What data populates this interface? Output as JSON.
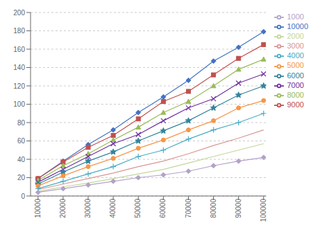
{
  "chart_data": {
    "type": "line",
    "x": [
      10000,
      20000,
      30000,
      40000,
      50000,
      60000,
      70000,
      80000,
      90000,
      100000
    ],
    "series": [
      {
        "name": "10000",
        "color": "#4472C4",
        "marker": "diamond",
        "values": [
          19,
          38,
          56,
          72,
          91,
          108,
          126,
          147,
          162,
          179
        ]
      },
      {
        "name": "9000",
        "color": "#C0504D",
        "marker": "square",
        "values": [
          19,
          37,
          53,
          66,
          84,
          103,
          114,
          132,
          150,
          165
        ]
      },
      {
        "name": "8000",
        "color": "#9BBB59",
        "marker": "triangle",
        "values": [
          17,
          33,
          46,
          61,
          75,
          91,
          103,
          120,
          138,
          149
        ]
      },
      {
        "name": "7000",
        "color": "#7030A0",
        "marker": "x",
        "values": [
          15,
          29,
          43,
          57,
          67,
          82,
          96,
          106,
          123,
          133
        ]
      },
      {
        "name": "6000",
        "color": "#31849B",
        "marker": "star",
        "values": [
          13,
          26,
          38,
          48,
          60,
          71,
          82,
          96,
          110,
          120
        ]
      },
      {
        "name": "5000",
        "color": "#F79646",
        "marker": "circle",
        "values": [
          11,
          22,
          32,
          41,
          52,
          61,
          72,
          82,
          96,
          104
        ]
      },
      {
        "name": "4000",
        "color": "#4BACC6",
        "marker": "plus",
        "values": [
          8,
          16,
          24,
          32,
          43,
          50,
          62,
          72,
          80,
          90
        ]
      },
      {
        "name": "3000",
        "color": "#D99694",
        "marker": "none",
        "values": [
          7,
          13,
          19,
          25,
          32,
          38,
          46,
          55,
          63,
          72
        ]
      },
      {
        "name": "2000",
        "color": "#C3D69B",
        "marker": "none",
        "values": [
          5,
          10,
          14,
          19,
          24,
          29,
          36,
          43,
          50,
          57
        ]
      },
      {
        "name": "1000",
        "color": "#B2A2C7",
        "marker": "diamond",
        "values": [
          4,
          8,
          12,
          16,
          20,
          23,
          27,
          33,
          38,
          42
        ]
      }
    ],
    "xlim": [
      7000,
      101000
    ],
    "ylim": [
      0,
      200
    ],
    "xticks": [
      10000,
      20000,
      30000,
      40000,
      50000,
      60000,
      70000,
      80000,
      90000,
      100000
    ],
    "yticks": [
      0,
      20,
      40,
      60,
      80,
      100,
      120,
      140,
      160,
      180,
      200
    ],
    "grid": true,
    "legend": "right"
  }
}
